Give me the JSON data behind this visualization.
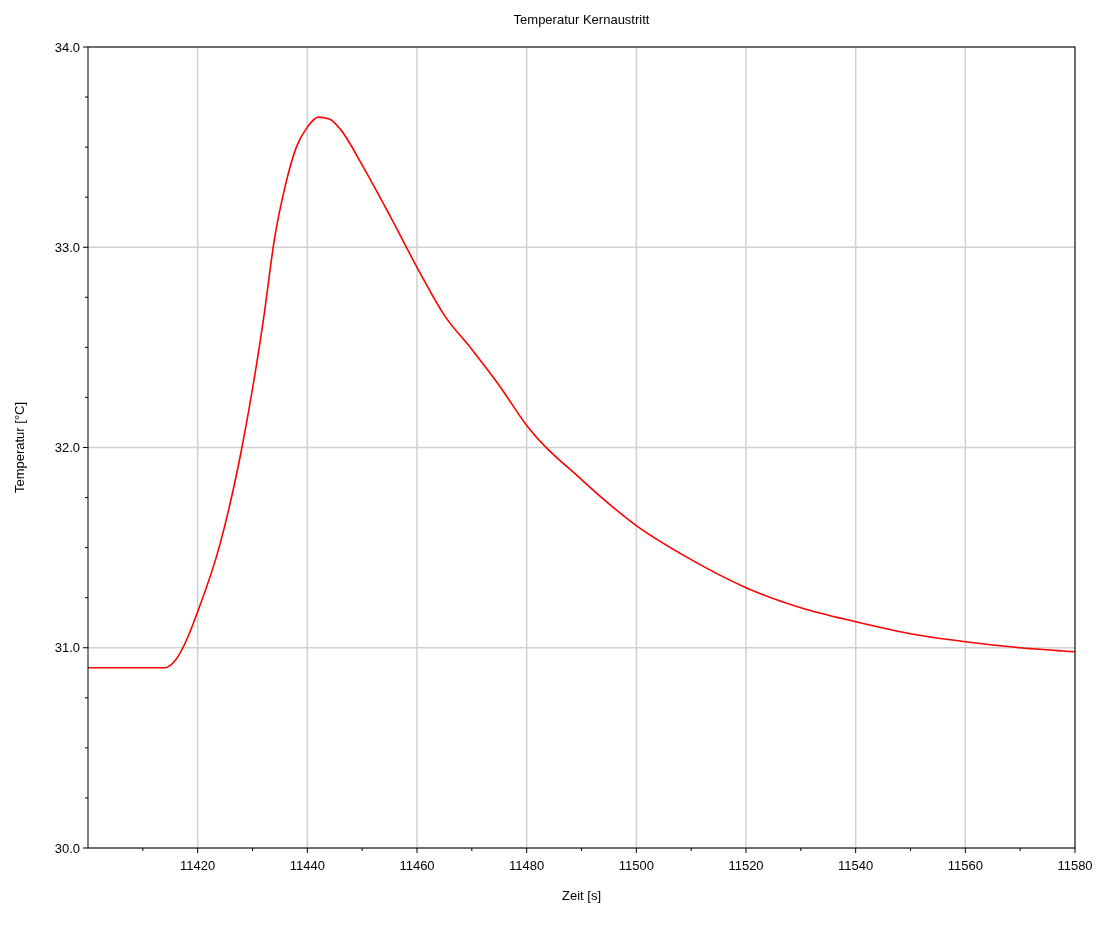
{
  "chart_data": {
    "type": "line",
    "title": "Temperatur Kernaustritt",
    "xlabel": "Zeit [s]",
    "ylabel": "Temperatur [°C]",
    "x": [
      11400,
      11414,
      11416,
      11418,
      11420,
      11424,
      11428,
      11432,
      11434,
      11436,
      11438,
      11440,
      11442,
      11444,
      11446,
      11450,
      11455,
      11460,
      11465,
      11470,
      11475,
      11480,
      11490,
      11500,
      11510,
      11520,
      11530,
      11540,
      11550,
      11560,
      11570,
      11580
    ],
    "series": [
      {
        "color": "#ff0000",
        "values": [
          30.9,
          30.9,
          30.94,
          31.04,
          31.18,
          31.51,
          31.99,
          32.64,
          33.04,
          33.31,
          33.5,
          33.6,
          33.65,
          33.64,
          33.59,
          33.41,
          33.16,
          32.9,
          32.66,
          32.49,
          32.31,
          32.11,
          31.84,
          31.61,
          31.44,
          31.3,
          31.2,
          31.13,
          31.07,
          31.03,
          31.0,
          30.98
        ]
      }
    ],
    "xlim": [
      11400,
      11580
    ],
    "xticks": [
      {
        "value": 11410,
        "label": null
      },
      11420,
      {
        "value": 11430,
        "label": null
      },
      11440,
      {
        "value": 11450,
        "label": null
      },
      11460,
      {
        "value": 11470,
        "label": null
      },
      11480,
      {
        "value": 11490,
        "label": null
      },
      11500,
      {
        "value": 11510,
        "label": null
      },
      11520,
      {
        "value": 11530,
        "label": null
      },
      11540,
      {
        "value": 11550,
        "label": null
      },
      11560,
      {
        "value": 11570,
        "label": null
      },
      11580
    ],
    "ylim": [
      30,
      34
    ],
    "yticks": [
      {
        "value": 30,
        "label": "30.0"
      },
      {
        "value": 30.25,
        "label": null
      },
      {
        "value": 30.5,
        "label": null
      },
      {
        "value": 30.75,
        "label": null
      },
      {
        "value": 31,
        "label": "31.0"
      },
      {
        "value": 31.25,
        "label": null
      },
      {
        "value": 31.5,
        "label": null
      },
      {
        "value": 31.75,
        "label": null
      },
      {
        "value": 32,
        "label": "32.0"
      },
      {
        "value": 32.25,
        "label": null
      },
      {
        "value": 32.5,
        "label": null
      },
      {
        "value": 32.75,
        "label": null
      },
      {
        "value": 33,
        "label": "33.0"
      },
      {
        "value": 33.25,
        "label": null
      },
      {
        "value": 33.5,
        "label": null
      },
      {
        "value": 33.75,
        "label": null
      },
      {
        "value": 34,
        "label": "34.0"
      }
    ],
    "grid": true,
    "marker": "none",
    "line_style": "solid"
  }
}
